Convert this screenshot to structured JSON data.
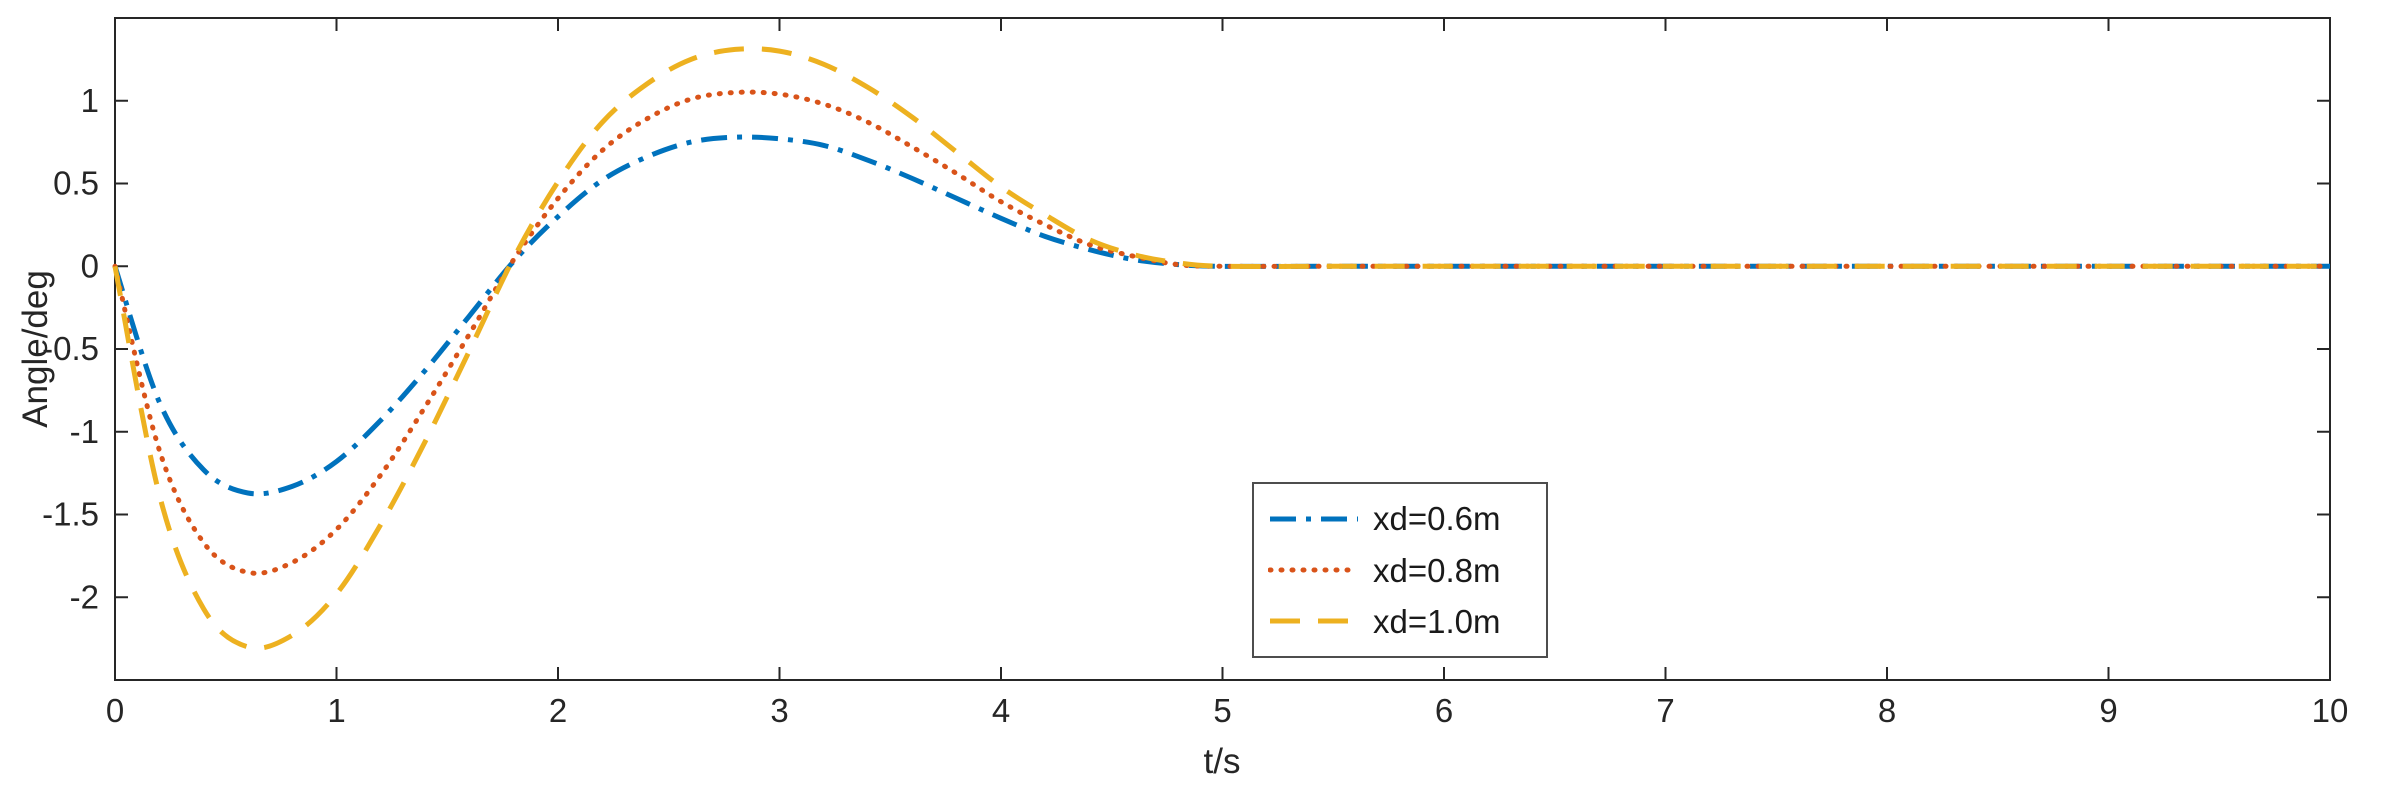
{
  "chart_data": {
    "type": "line",
    "title": "",
    "xlabel": "t/s",
    "ylabel": "Angle/deg",
    "xlim": [
      0,
      10
    ],
    "ylim": [
      -2.5,
      1.5
    ],
    "xticks": [
      0,
      1,
      2,
      3,
      4,
      5,
      6,
      7,
      8,
      9,
      10
    ],
    "xtick_labels": [
      "0",
      "1",
      "2",
      "3",
      "4",
      "5",
      "6",
      "7",
      "8",
      "9",
      "10"
    ],
    "yticks": [
      -2,
      -1.5,
      -1,
      -0.5,
      0,
      0.5,
      1
    ],
    "ytick_labels": [
      "-2",
      "-1.5",
      "-1",
      "-0.5",
      "0",
      "0.5",
      "1"
    ],
    "grid": false,
    "legend_position": "lower-right-inside",
    "x": [
      0,
      0.2,
      0.4,
      0.6,
      0.8,
      1.0,
      1.2,
      1.4,
      1.6,
      1.8,
      2.0,
      2.2,
      2.4,
      2.6,
      2.8,
      3.0,
      3.2,
      3.4,
      3.6,
      3.8,
      4.0,
      4.2,
      4.4,
      4.6,
      4.8,
      5.0,
      5.5,
      6,
      7,
      8,
      9,
      10
    ],
    "series": [
      {
        "name": "xd=0.6m",
        "color": "#0072BD",
        "style": "dash-dot",
        "y": [
          0,
          -0.82,
          -1.23,
          -1.37,
          -1.33,
          -1.18,
          -0.93,
          -0.63,
          -0.3,
          0.03,
          0.3,
          0.52,
          0.66,
          0.75,
          0.78,
          0.77,
          0.73,
          0.64,
          0.53,
          0.41,
          0.29,
          0.18,
          0.1,
          0.04,
          0.01,
          0,
          0,
          0,
          0,
          0,
          0,
          0
        ]
      },
      {
        "name": "xd=0.8m",
        "color": "#D95319",
        "style": "dotted",
        "y": [
          0,
          -1.11,
          -1.67,
          -1.85,
          -1.79,
          -1.59,
          -1.26,
          -0.85,
          -0.41,
          0.04,
          0.41,
          0.7,
          0.89,
          1.01,
          1.05,
          1.04,
          0.98,
          0.87,
          0.72,
          0.56,
          0.39,
          0.25,
          0.13,
          0.06,
          0.01,
          0,
          0,
          0,
          0,
          0,
          0,
          0
        ]
      },
      {
        "name": "xd=1.0m",
        "color": "#EDB120",
        "style": "dashed",
        "y": [
          0,
          -1.38,
          -2.07,
          -2.3,
          -2.23,
          -1.98,
          -1.56,
          -1.06,
          -0.51,
          0.05,
          0.51,
          0.87,
          1.1,
          1.25,
          1.31,
          1.3,
          1.22,
          1.08,
          0.9,
          0.69,
          0.48,
          0.31,
          0.16,
          0.07,
          0.02,
          0,
          0,
          0,
          0,
          0,
          0,
          0
        ]
      }
    ]
  },
  "axes": {
    "frame_color": "#262626",
    "tick_color": "#262626",
    "text_color": "#262626",
    "background": "#ffffff"
  }
}
